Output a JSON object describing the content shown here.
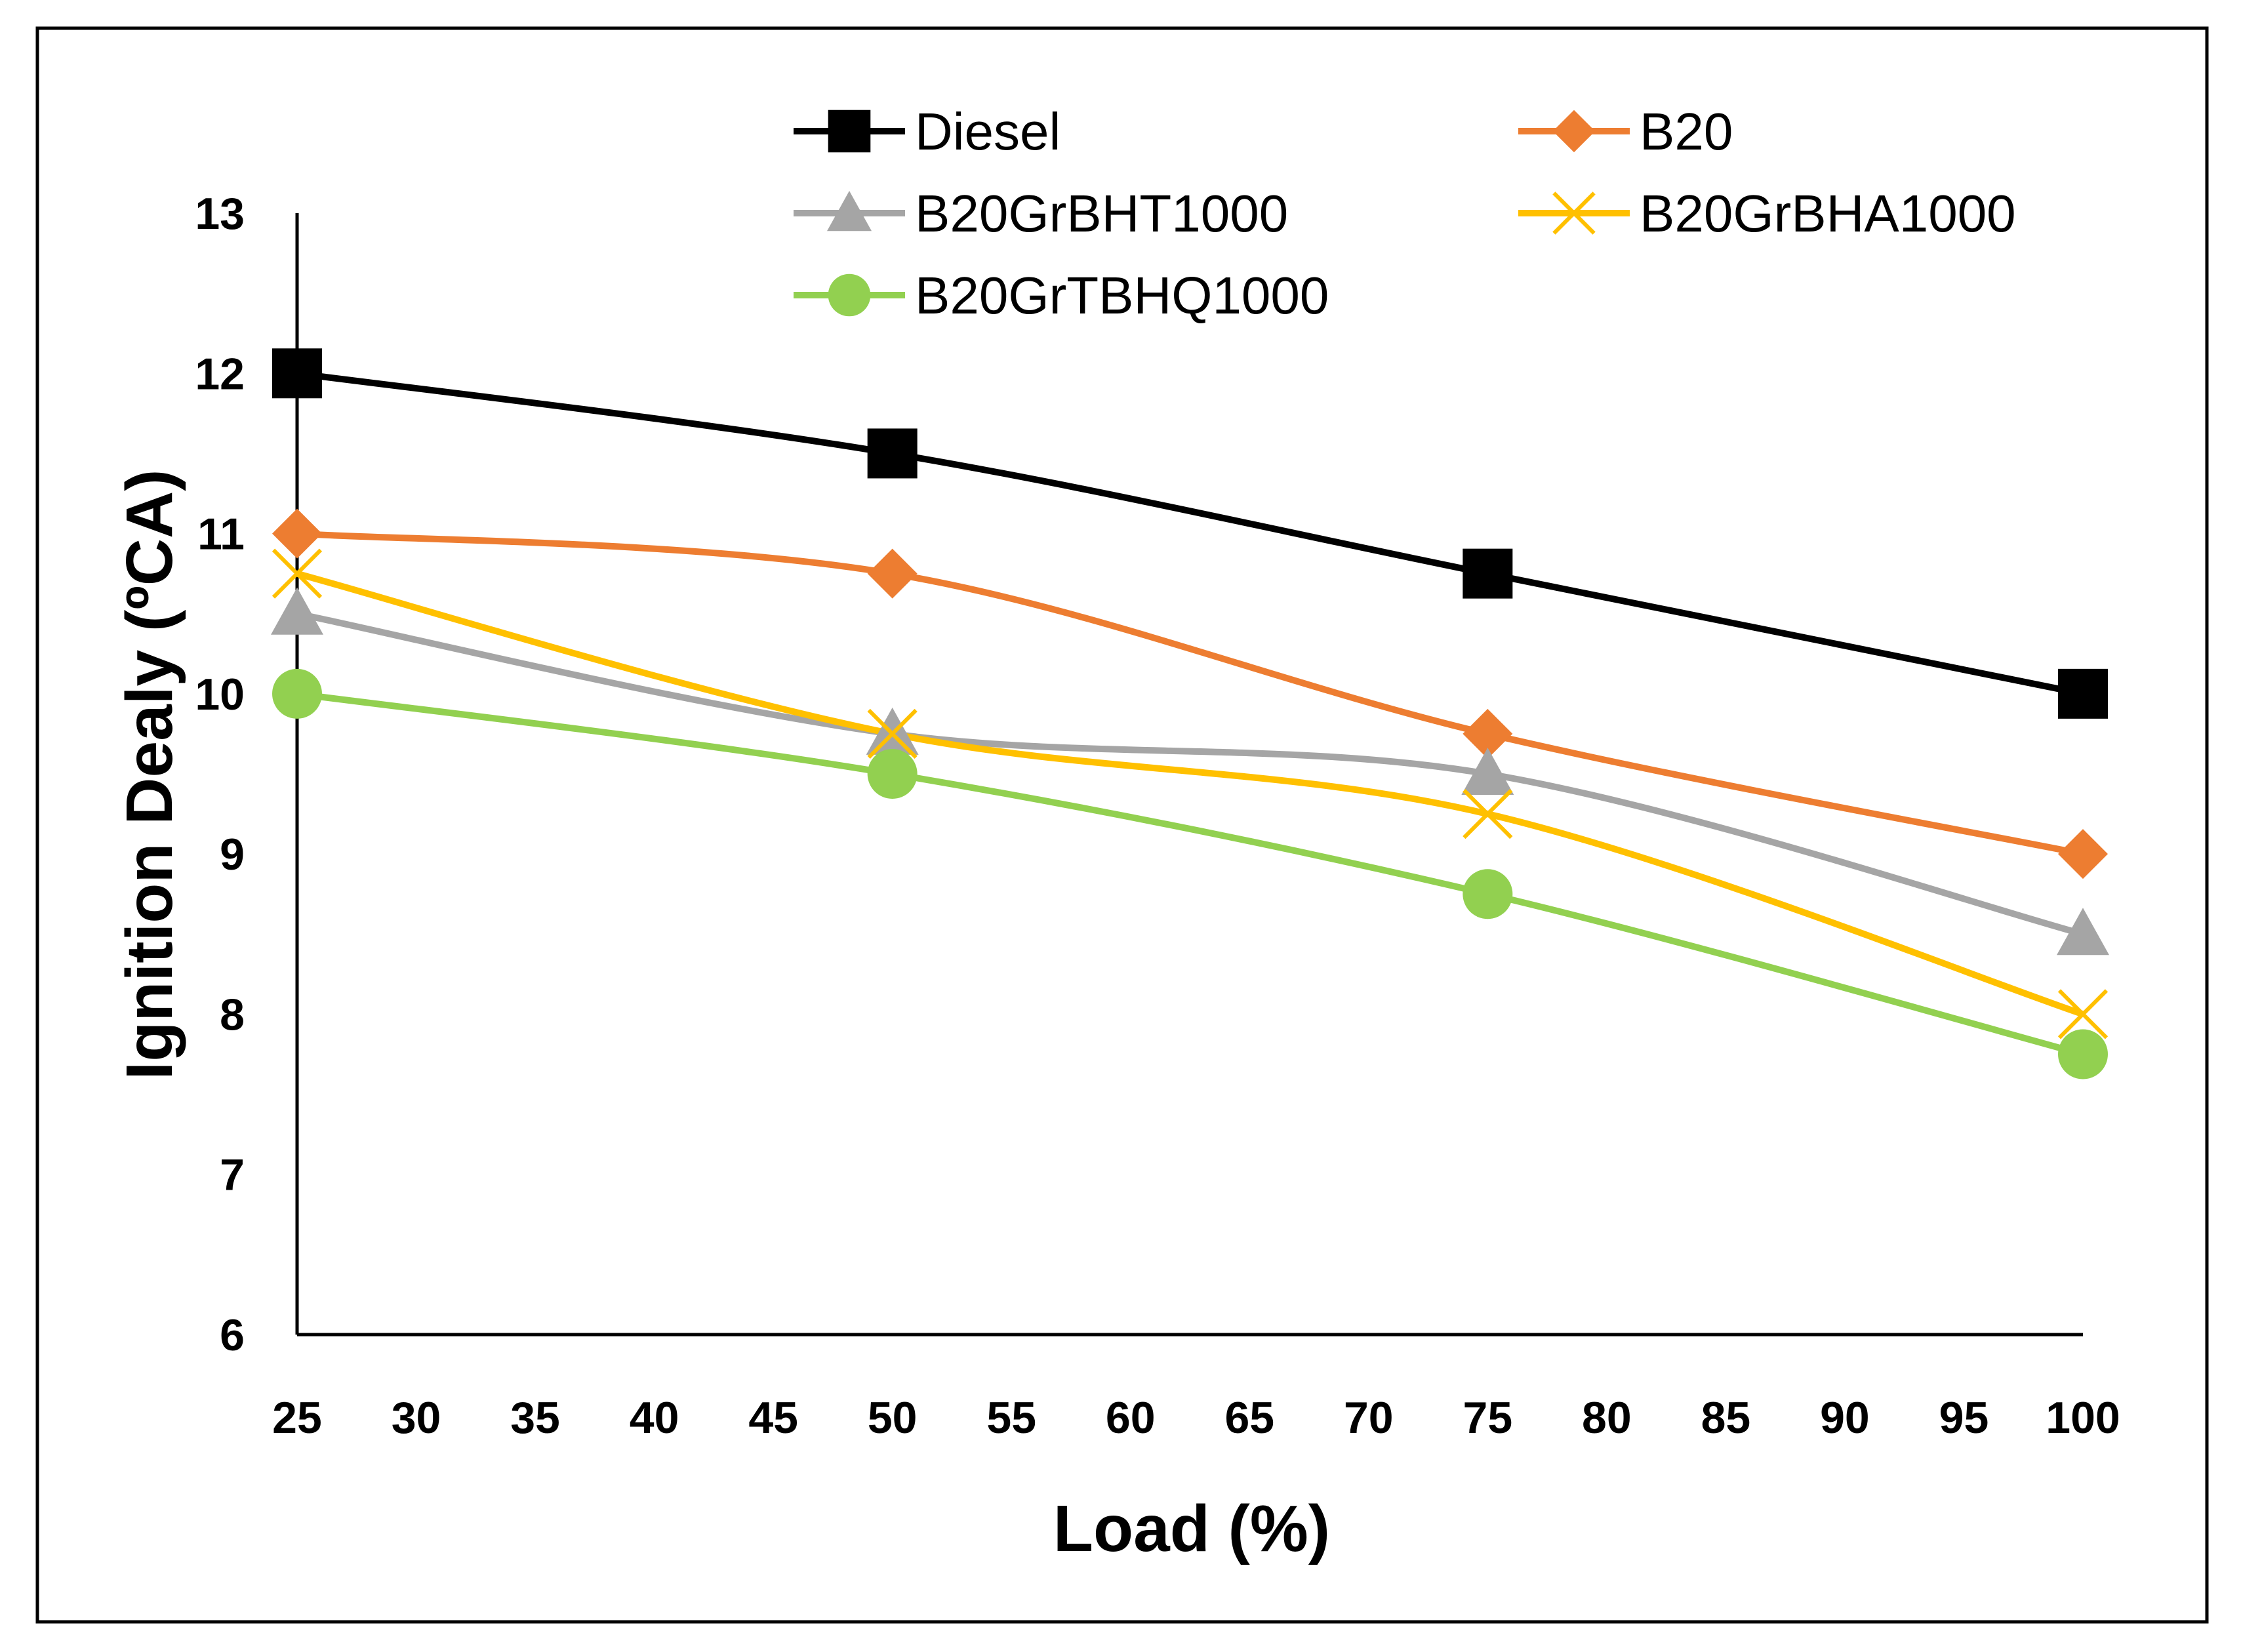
{
  "chart_data": {
    "type": "line",
    "title": "",
    "xlabel": "Load (%)",
    "ylabel": "Ignition Dealy (ºCA)",
    "xlim": [
      25,
      100
    ],
    "ylim": [
      6,
      13
    ],
    "x_ticks": [
      25,
      30,
      35,
      40,
      45,
      50,
      55,
      60,
      65,
      70,
      75,
      80,
      85,
      90,
      95,
      100
    ],
    "y_ticks": [
      6,
      7,
      8,
      9,
      10,
      11,
      12,
      13
    ],
    "grid": false,
    "legend_position": "top",
    "x": [
      25,
      50,
      75,
      100
    ],
    "series": [
      {
        "name": "Diesel",
        "values": [
          12.0,
          11.5,
          10.75,
          10.0
        ],
        "color": "#000000",
        "marker": "square"
      },
      {
        "name": "B20",
        "values": [
          11.0,
          10.75,
          9.75,
          9.0
        ],
        "color": "#ED7D31",
        "marker": "diamond"
      },
      {
        "name": "B20GrBHT1000",
        "values": [
          10.5,
          9.75,
          9.5,
          8.5
        ],
        "color": "#A5A5A5",
        "marker": "triangle"
      },
      {
        "name": "B20GrBHA1000",
        "values": [
          10.75,
          9.75,
          9.25,
          8.0
        ],
        "color": "#FFC000",
        "marker": "x"
      },
      {
        "name": "B20GrTBHQ1000",
        "values": [
          10.0,
          9.5,
          8.75,
          7.75
        ],
        "color": "#92D050",
        "marker": "circle"
      }
    ]
  }
}
